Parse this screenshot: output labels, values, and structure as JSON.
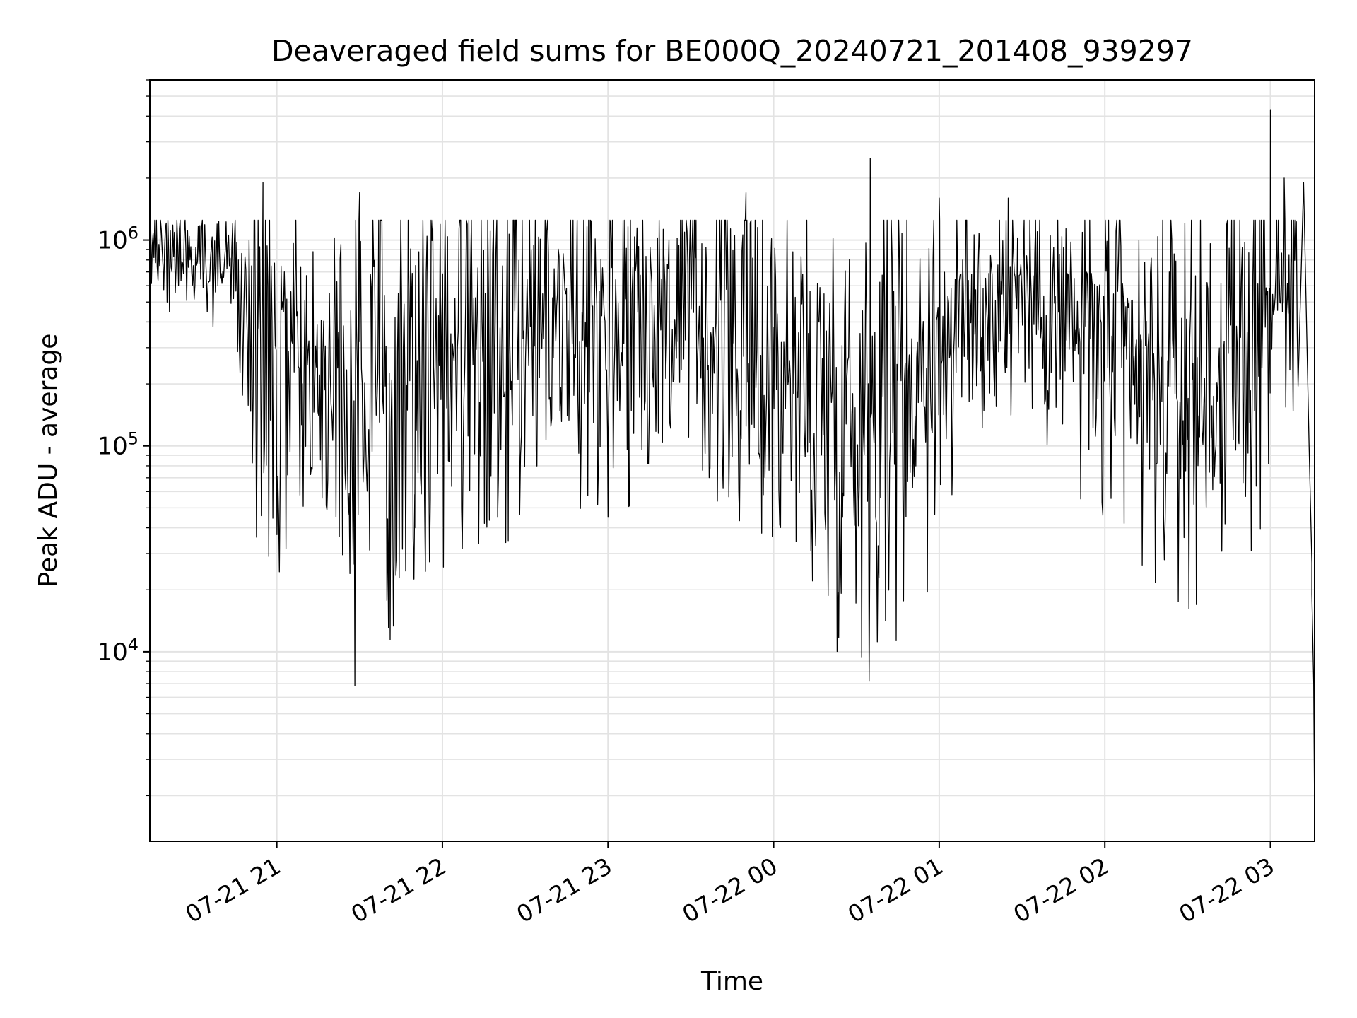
{
  "chart_data": {
    "type": "line",
    "title": "Deaveraged field sums for BE000Q_20240721_201408_939297",
    "xlabel": "Time",
    "ylabel": "Peak ADU - average",
    "x_tick_labels": [
      "07-21 21",
      "07-21 22",
      "07-21 23",
      "07-22 00",
      "07-22 01",
      "07-22 02",
      "07-22 03"
    ],
    "x_tick_times": [
      "2024-07-21 21:00",
      "2024-07-21 22:00",
      "2024-07-21 23:00",
      "2024-07-22 00:00",
      "2024-07-22 01:00",
      "2024-07-22 02:00",
      "2024-07-22 03:00"
    ],
    "xlim": [
      "2024-07-21 20:14",
      "2024-07-22 03:16"
    ],
    "y_scale": "log",
    "ylim": [
      1200,
      6000000
    ],
    "y_tick_labels": [
      {
        "base": "10",
        "exp": "4",
        "value": 10000
      },
      {
        "base": "10",
        "exp": "5",
        "value": 100000
      },
      {
        "base": "10",
        "exp": "6",
        "value": 1000000
      }
    ],
    "grid": true,
    "line_color": "#000000",
    "series": [
      {
        "x": [
          "2024-07-21 20:14",
          "2024-07-21 20:20",
          "2024-07-21 20:30",
          "2024-07-21 20:40",
          "2024-07-21 20:45",
          "2024-07-21 20:50",
          "2024-07-21 20:55",
          "2024-07-21 21:00",
          "2024-07-21 21:10",
          "2024-07-21 21:20",
          "2024-07-21 21:30",
          "2024-07-21 21:40",
          "2024-07-21 21:50",
          "2024-07-21 22:00",
          "2024-07-21 22:15",
          "2024-07-21 22:30",
          "2024-07-21 22:45",
          "2024-07-21 23:00",
          "2024-07-21 23:15",
          "2024-07-21 23:30",
          "2024-07-21 23:45",
          "2024-07-22 00:00",
          "2024-07-22 00:15",
          "2024-07-22 00:30",
          "2024-07-22 00:45",
          "2024-07-22 01:00",
          "2024-07-22 01:15",
          "2024-07-22 01:30",
          "2024-07-22 01:45",
          "2024-07-22 02:00",
          "2024-07-22 02:15",
          "2024-07-22 02:30",
          "2024-07-22 02:45",
          "2024-07-22 03:00",
          "2024-07-22 03:05",
          "2024-07-22 03:10",
          "2024-07-22 03:14",
          "2024-07-22 03:16"
        ],
        "y": [
          950000,
          900000,
          850000,
          820000,
          700000,
          350000,
          200000,
          180000,
          190000,
          210000,
          130000,
          250000,
          300000,
          320000,
          380000,
          400000,
          420000,
          450000,
          450000,
          420000,
          330000,
          250000,
          170000,
          140000,
          200000,
          320000,
          450000,
          650000,
          400000,
          300000,
          190000,
          180000,
          220000,
          500000,
          600000,
          550000,
          100000,
          1500
        ],
        "spread": [
          0.12,
          0.12,
          0.12,
          0.12,
          0.15,
          0.5,
          0.55,
          0.45,
          0.4,
          0.4,
          0.55,
          0.6,
          0.6,
          0.6,
          0.5,
          0.5,
          0.5,
          0.45,
          0.45,
          0.45,
          0.45,
          0.5,
          0.5,
          0.55,
          0.55,
          0.45,
          0.35,
          0.3,
          0.35,
          0.45,
          0.45,
          0.45,
          0.45,
          0.4,
          0.3,
          0.3,
          0.1,
          0.1
        ],
        "spikes": [
          {
            "x": "2024-07-21 20:55",
            "y": 1900000
          },
          {
            "x": "2024-07-21 20:44",
            "y": 1200000
          },
          {
            "x": "2024-07-21 21:00",
            "y": 60000
          },
          {
            "x": "2024-07-21 21:30",
            "y": 1700000
          },
          {
            "x": "2024-07-21 21:50",
            "y": 40000
          },
          {
            "x": "2024-07-21 22:20",
            "y": 45000
          },
          {
            "x": "2024-07-21 23:00",
            "y": 45000
          },
          {
            "x": "2024-07-21 23:50",
            "y": 1700000
          },
          {
            "x": "2024-07-22 00:35",
            "y": 2500000
          },
          {
            "x": "2024-07-22 00:25",
            "y": 45000
          },
          {
            "x": "2024-07-22 01:00",
            "y": 1600000
          },
          {
            "x": "2024-07-22 01:25",
            "y": 1600000
          },
          {
            "x": "2024-07-22 02:07",
            "y": 42000
          },
          {
            "x": "2024-07-22 03:00",
            "y": 4300000
          },
          {
            "x": "2024-07-22 03:05",
            "y": 2000000
          },
          {
            "x": "2024-07-22 03:12",
            "y": 1900000
          },
          {
            "x": "2024-07-22 03:15",
            "y": 27000
          },
          {
            "x": "2024-07-22 03:15",
            "y": 19000
          }
        ]
      }
    ]
  }
}
